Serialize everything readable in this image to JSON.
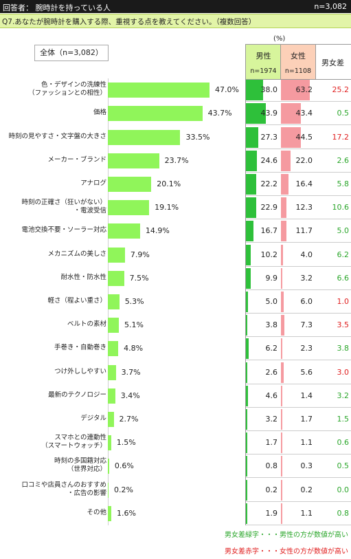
{
  "header": {
    "respondents": "回答者：  腕時計を持っている人",
    "n": "n=3,082"
  },
  "question": "Q7.あなたが腕時計を購入する際、重視する点を教えてください。（複数回答）",
  "unit": "(%)",
  "overall_label": "全体（n=3,082）",
  "columns": {
    "male": {
      "label": "男性",
      "n": "n=1974"
    },
    "female": {
      "label": "女性",
      "n": "n=1108"
    },
    "diff": {
      "label": "男女差"
    }
  },
  "colors": {
    "overall_bar": "#90f55a",
    "male_bar": "#2ec03a",
    "female_bar": "#f59aa0",
    "green_text": "#2aa62a",
    "red_text": "#e02020",
    "male_header": "#d7f59c",
    "female_header": "#fcd0b8"
  },
  "legend": {
    "green": "男女差緑字・・・男性の方が数値が高い",
    "red": "男女差赤字・・・女性の方が数値が高い"
  },
  "chart_data": {
    "type": "bar",
    "orientation": "horizontal",
    "categories": [
      "色・デザインの洗練性\n（ファッションとの相性）",
      "価格",
      "時刻の見やすさ・文字盤の大きさ",
      "メーカー・ブランド",
      "アナログ",
      "時刻の正確さ（狂いがない）\n・電波受信",
      "電池交換不要・ソーラー対応",
      "メカニズムの美しさ",
      "耐水性・防水性",
      "軽さ（程よい重さ）",
      "ベルトの素材",
      "手巻き・自動巻き",
      "つけ外ししやすい",
      "最新のテクノロジー",
      "デジタル",
      "スマホとの連動性\n（スマートウォッチ）",
      "時刻の多国籍対応\n（世界対応）",
      "口コミや店員さんのおすすめ\n・広告の影響",
      "その他"
    ],
    "series": [
      {
        "name": "全体（n=3,082）",
        "values": [
          47.0,
          43.7,
          33.5,
          23.7,
          20.1,
          19.1,
          14.9,
          7.9,
          7.5,
          5.3,
          5.1,
          4.8,
          3.7,
          3.4,
          2.7,
          1.5,
          0.6,
          0.2,
          1.6
        ]
      },
      {
        "name": "男性",
        "values": [
          38.0,
          43.9,
          27.3,
          24.6,
          22.2,
          22.9,
          16.7,
          10.2,
          9.9,
          5.0,
          3.8,
          6.2,
          2.6,
          4.6,
          3.2,
          1.7,
          0.8,
          0.2,
          1.9
        ]
      },
      {
        "name": "女性",
        "values": [
          63.2,
          43.4,
          44.5,
          22.0,
          16.4,
          12.3,
          11.7,
          4.0,
          3.2,
          6.0,
          7.3,
          2.3,
          5.6,
          1.4,
          1.7,
          1.1,
          0.3,
          0.2,
          1.1
        ]
      },
      {
        "name": "男女差",
        "values": [
          25.2,
          0.5,
          17.2,
          2.6,
          5.8,
          10.6,
          5.0,
          6.2,
          6.6,
          1.0,
          3.5,
          3.8,
          3.0,
          3.2,
          1.5,
          0.6,
          0.5,
          0.0,
          0.8
        ]
      }
    ],
    "diff_color": [
      "red",
      "green",
      "red",
      "green",
      "green",
      "green",
      "green",
      "green",
      "green",
      "red",
      "red",
      "green",
      "red",
      "green",
      "green",
      "green",
      "green",
      "green",
      "green"
    ],
    "xlim": [
      0,
      100
    ]
  }
}
